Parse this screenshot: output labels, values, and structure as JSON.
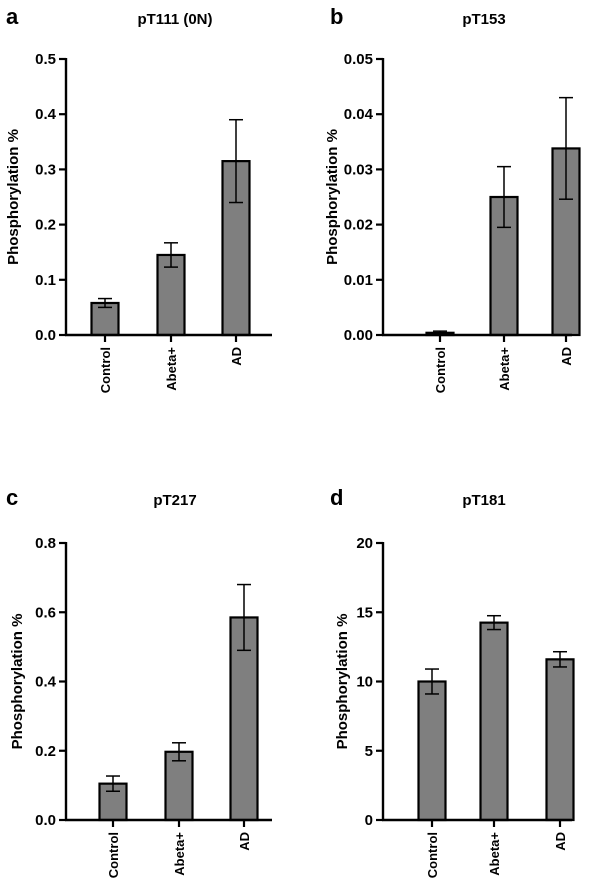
{
  "chart_data": [
    {
      "type": "bar",
      "panel": "a",
      "title": "pT111 (0N)",
      "xlabel": "",
      "ylabel": "Phosphorylation %",
      "categories": [
        "Control",
        "Abeta+",
        "AD"
      ],
      "values": [
        0.058,
        0.145,
        0.315
      ],
      "errors": [
        0.008,
        0.022,
        0.075
      ],
      "ylim": [
        0,
        0.5
      ],
      "yticks": [
        0.0,
        0.1,
        0.2,
        0.3,
        0.4,
        0.5
      ],
      "ytick_labels": [
        "0.0",
        "0.1",
        "0.2",
        "0.3",
        "0.4",
        "0.5"
      ]
    },
    {
      "type": "bar",
      "panel": "b",
      "title": "pT153",
      "xlabel": "",
      "ylabel": "Phosphorylation %",
      "categories": [
        "Control",
        "Abeta+",
        "AD"
      ],
      "values": [
        0.0004,
        0.025,
        0.0338
      ],
      "errors": [
        0.0003,
        0.0055,
        0.0092
      ],
      "ylim": [
        0,
        0.05
      ],
      "yticks": [
        0.0,
        0.01,
        0.02,
        0.03,
        0.04,
        0.05
      ],
      "ytick_labels": [
        "0.00",
        "0.01",
        "0.02",
        "0.03",
        "0.04",
        "0.05"
      ]
    },
    {
      "type": "bar",
      "panel": "c",
      "title": "pT217",
      "xlabel": "",
      "ylabel": "Phosphorylation %",
      "categories": [
        "Control",
        "Abeta+",
        "AD"
      ],
      "values": [
        0.105,
        0.197,
        0.585
      ],
      "errors": [
        0.022,
        0.026,
        0.095
      ],
      "ylim": [
        0,
        0.8
      ],
      "yticks": [
        0.0,
        0.2,
        0.4,
        0.6,
        0.8
      ],
      "ytick_labels": [
        "0.0",
        "0.2",
        "0.4",
        "0.6",
        "0.8"
      ]
    },
    {
      "type": "bar",
      "panel": "d",
      "title": "pT181",
      "xlabel": "",
      "ylabel": "Phosphorylation %",
      "categories": [
        "Control",
        "Abeta+",
        "AD"
      ],
      "values": [
        10.0,
        14.25,
        11.6
      ],
      "errors": [
        0.9,
        0.5,
        0.55
      ],
      "ylim": [
        0,
        20
      ],
      "yticks": [
        0,
        5,
        10,
        15,
        20
      ],
      "ytick_labels": [
        "0",
        "5",
        "10",
        "15",
        "20"
      ]
    }
  ],
  "colors": {
    "bar_fill": "#7f7f7f",
    "bar_stroke": "#000000",
    "axis": "#000000"
  }
}
